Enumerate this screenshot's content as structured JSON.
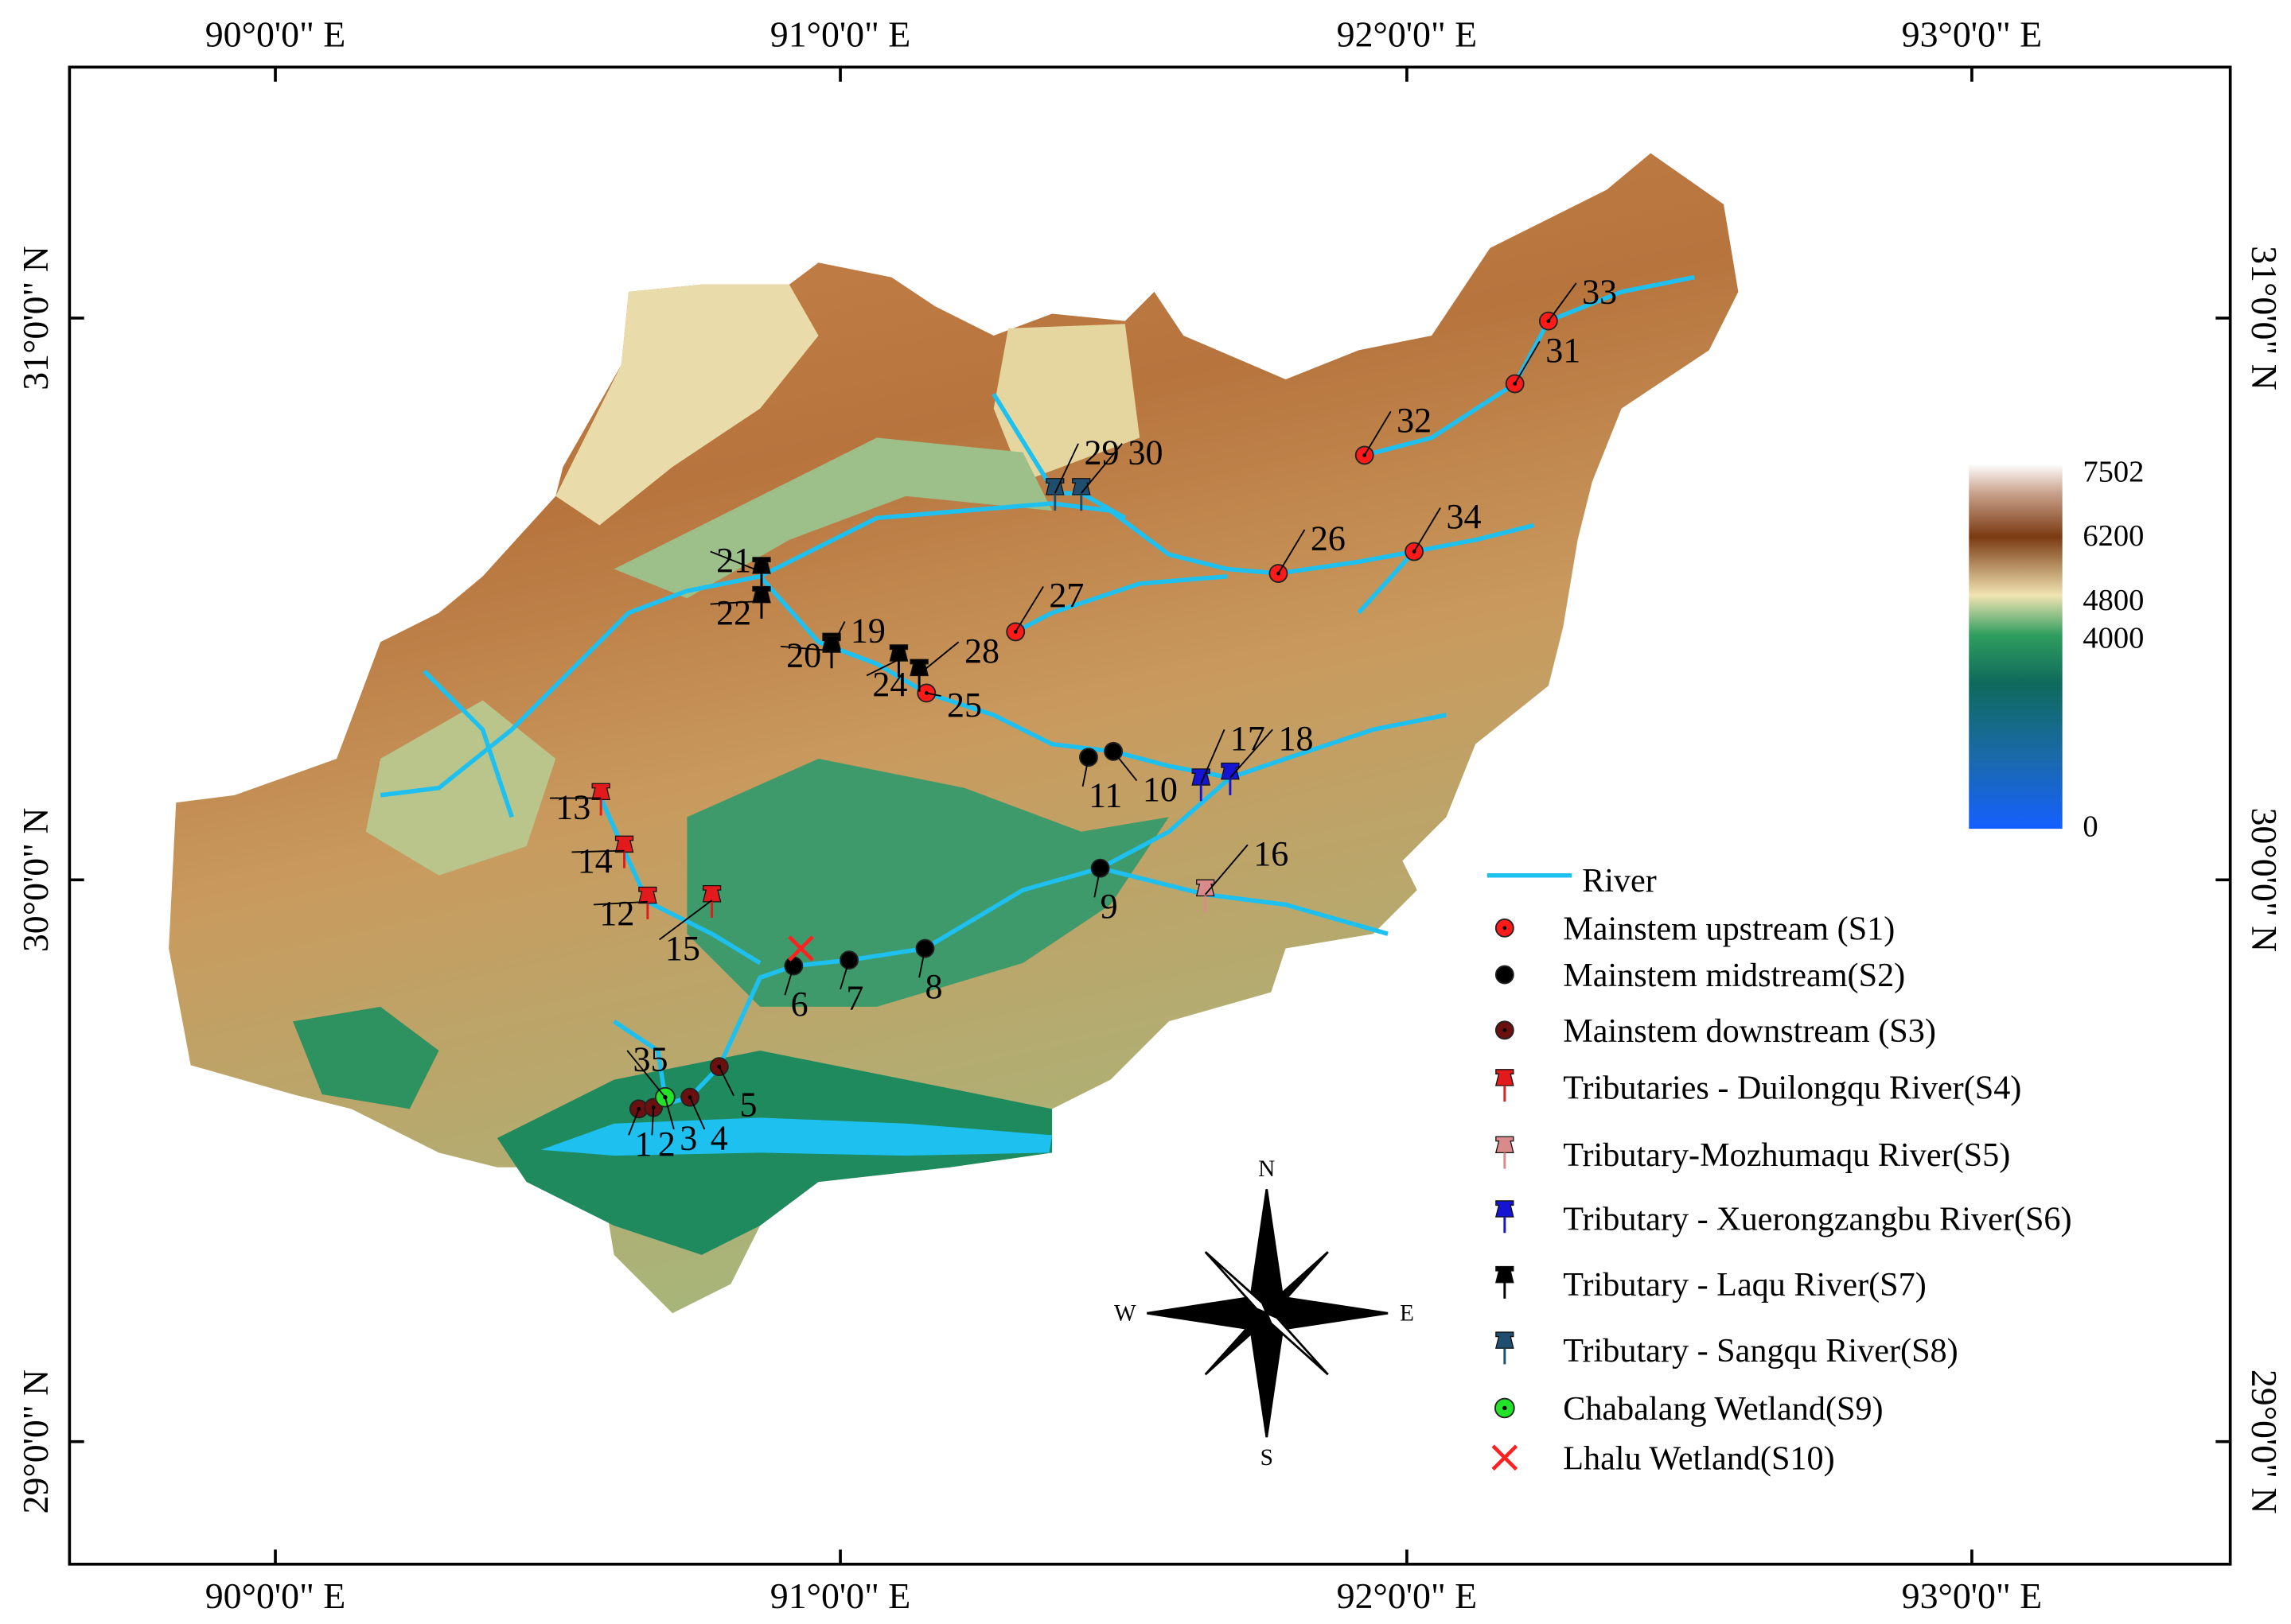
{
  "map": {
    "graticule": {
      "top": [
        "90°0'0\" E",
        "91°0'0\" E",
        "92°0'0\" E",
        "93°0'0\" E"
      ],
      "bottom": [
        "90°0'0\" E",
        "91°0'0\" E",
        "92°0'0\" E",
        "93°0'0\" E"
      ],
      "left": [
        "31°0'0\" N",
        "30°0'0\" N",
        "29°0'0\" N"
      ],
      "right": [
        "31°0'0\" N",
        "30°0'0\" N",
        "29°0'0\" N"
      ]
    },
    "colorbar": {
      "labels": [
        7502,
        6200,
        4800,
        4000,
        0
      ]
    },
    "legend": [
      "River",
      "Mainstem upstream (S1)",
      "Mainstem midstream(S2)",
      "Mainstem downstream (S3)",
      "Tributaries - Duilongqu River(S4)",
      "Tributary-Mozhumaqu River(S5)",
      "Tributary - Xuerongzangbu River(S6)",
      "Tributary - Laqu River(S7)",
      "Tributary - Sangqu River(S8)",
      "Chabalang Wetland(S9)",
      "Lhalu Wetland(S10)"
    ],
    "sites": [
      "1",
      "2",
      "3",
      "4",
      "5",
      "6",
      "7",
      "8",
      "9",
      "10",
      "11",
      "12",
      "13",
      "14",
      "15",
      "16",
      "17",
      "18",
      "19",
      "20",
      "21",
      "22",
      "24",
      "25",
      "26",
      "27",
      "28",
      "29",
      "30",
      "31",
      "32",
      "33",
      "34",
      "35"
    ],
    "compass": {
      "n": "N",
      "s": "S",
      "e": "E",
      "w": "W"
    }
  }
}
